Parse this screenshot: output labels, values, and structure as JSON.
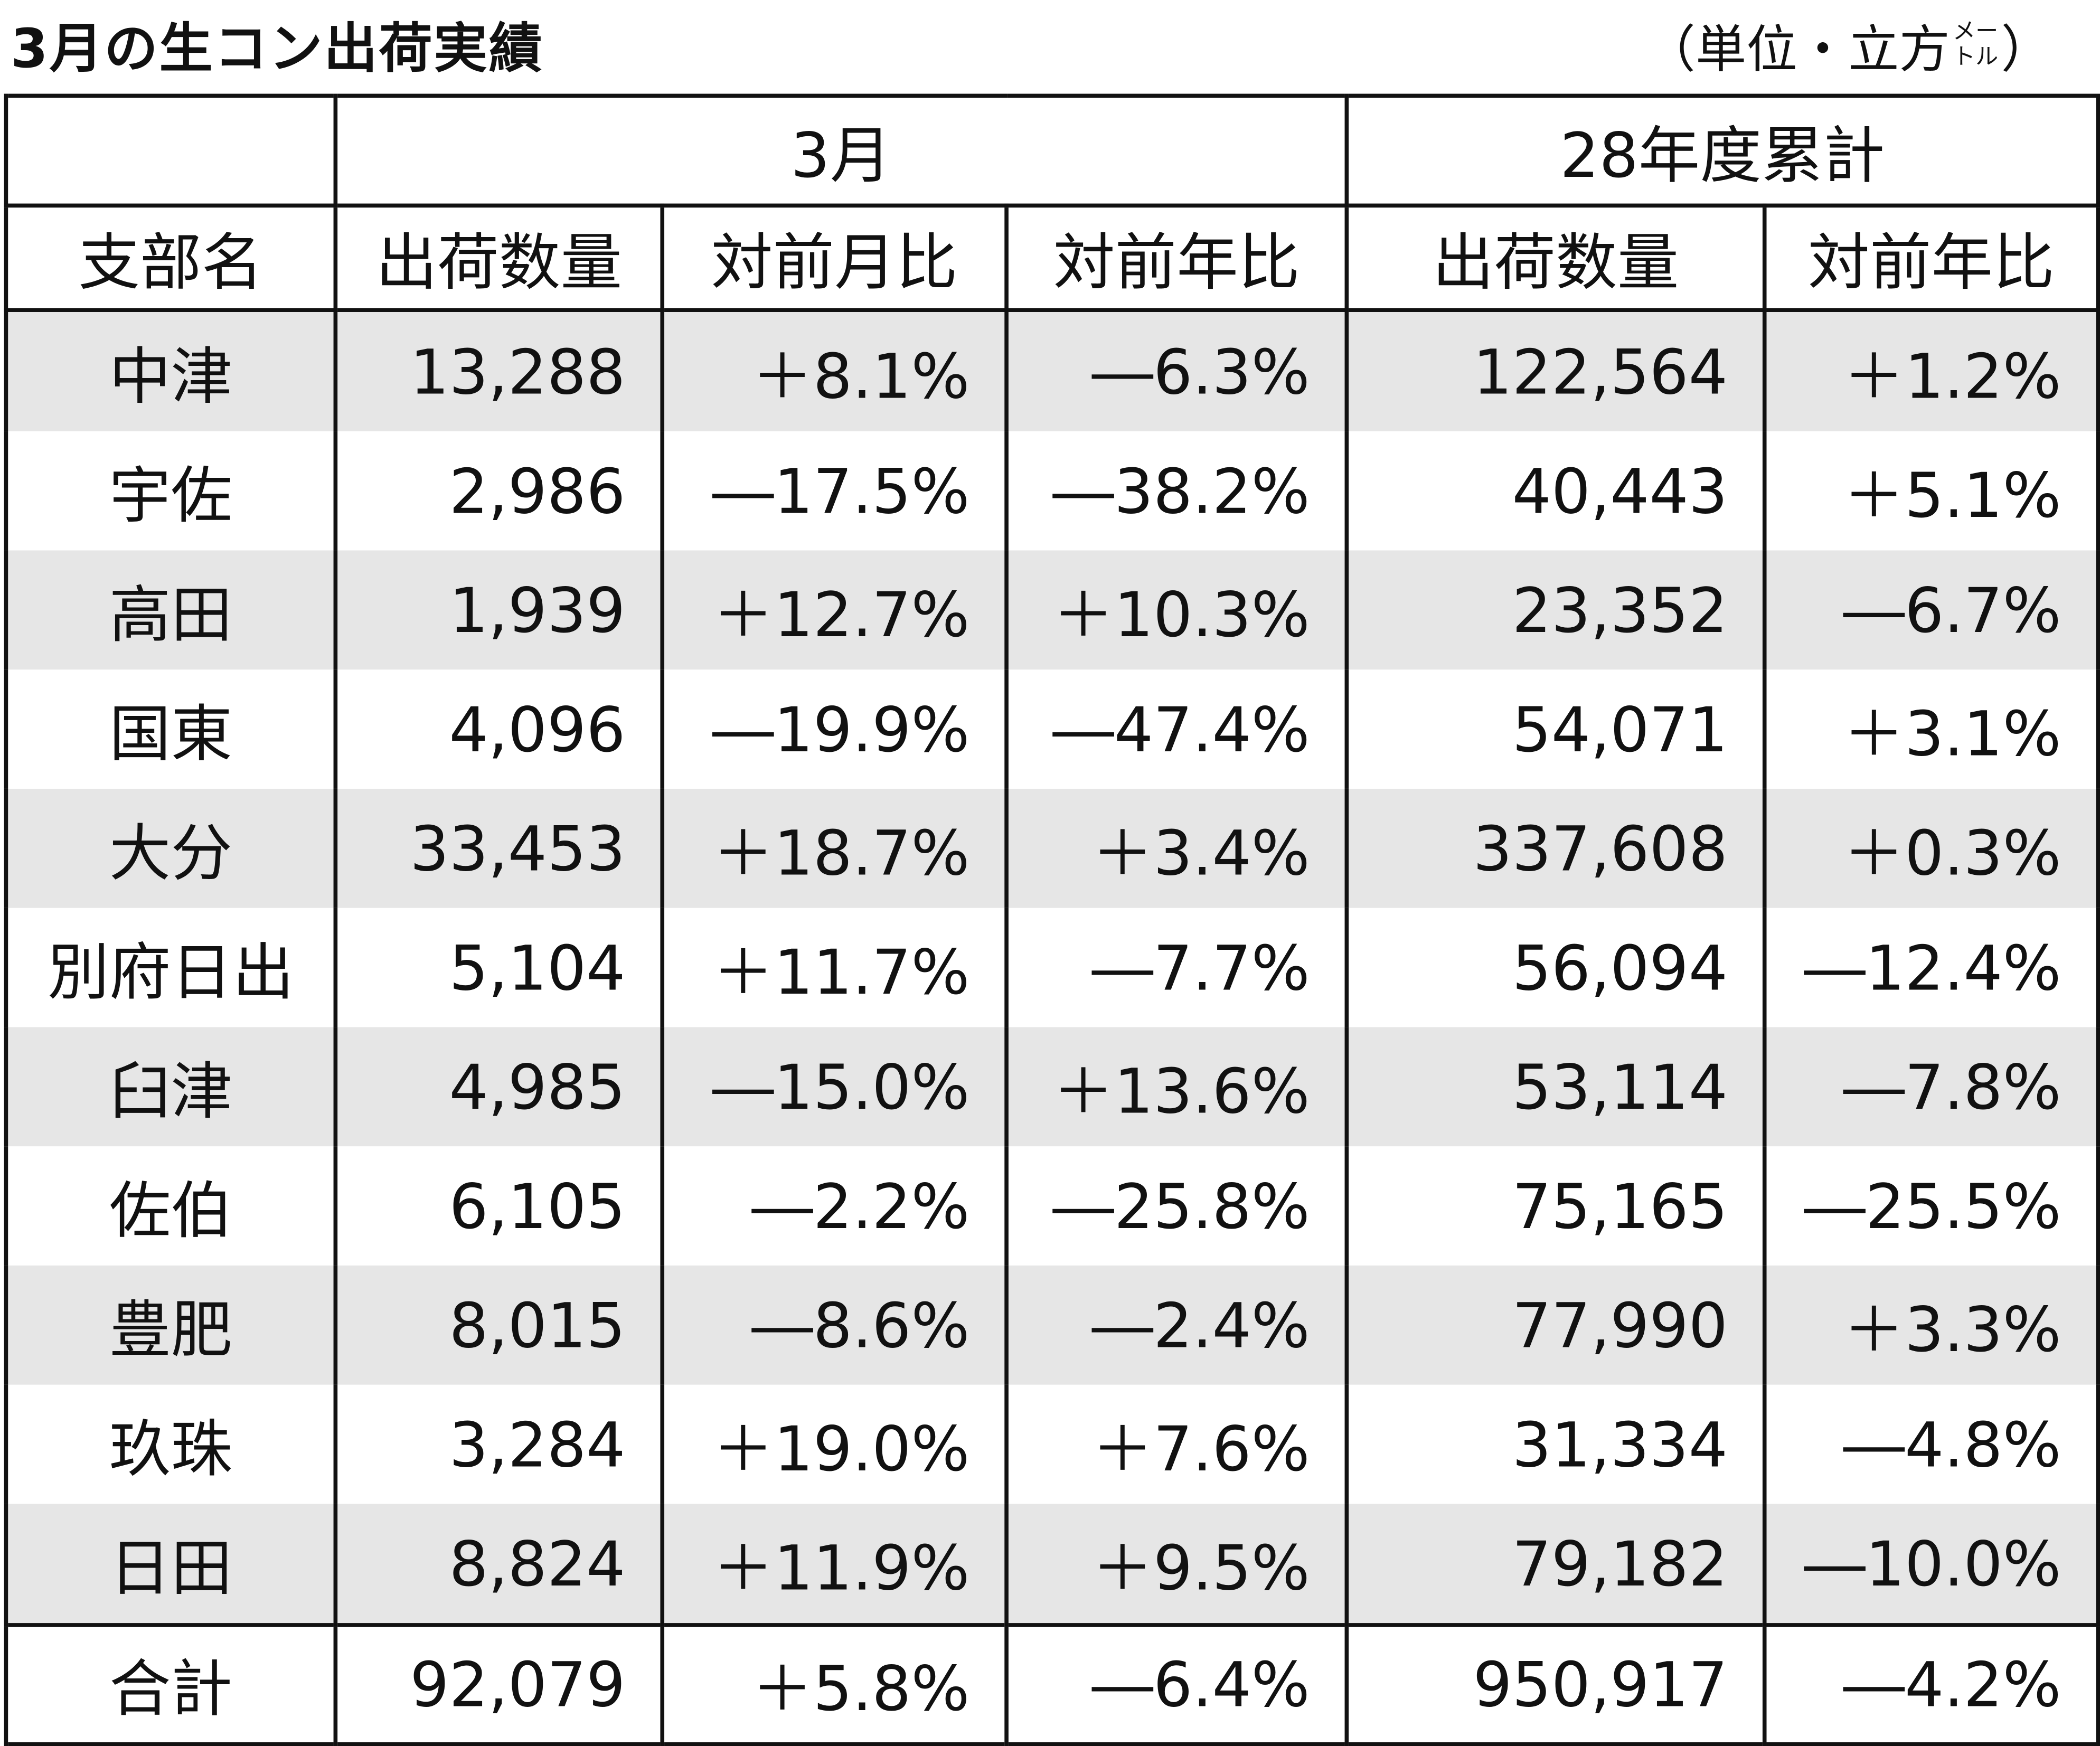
{
  "header": {
    "title": "3月の生コン出荷実績",
    "unit": {
      "open": "（単位・立方",
      "small_top": "メー",
      "small_bottom": "トル",
      "close": "）"
    }
  },
  "table": {
    "groups": [
      "3月",
      "28年度累計"
    ],
    "columns": [
      "支部名",
      "出荷数量",
      "対前月比",
      "対前年比",
      "出荷数量",
      "対前年比"
    ],
    "rows": [
      [
        "中津",
        "13,288",
        "＋8.1%",
        "―6.3%",
        "122,564",
        "＋1.2%"
      ],
      [
        "宇佐",
        "2,986",
        "―17.5%",
        "―38.2%",
        "40,443",
        "＋5.1%"
      ],
      [
        "高田",
        "1,939",
        "＋12.7%",
        "＋10.3%",
        "23,352",
        "―6.7%"
      ],
      [
        "国東",
        "4,096",
        "―19.9%",
        "―47.4%",
        "54,071",
        "＋3.1%"
      ],
      [
        "大分",
        "33,453",
        "＋18.7%",
        "＋3.4%",
        "337,608",
        "＋0.3%"
      ],
      [
        "別府日出",
        "5,104",
        "＋11.7%",
        "―7.7%",
        "56,094",
        "―12.4%"
      ],
      [
        "臼津",
        "4,985",
        "―15.0%",
        "＋13.6%",
        "53,114",
        "―7.8%"
      ],
      [
        "佐伯",
        "6,105",
        "―2.2%",
        "―25.8%",
        "75,165",
        "―25.5%"
      ],
      [
        "豊肥",
        "8,015",
        "―8.6%",
        "―2.4%",
        "77,990",
        "＋3.3%"
      ],
      [
        "玖珠",
        "3,284",
        "＋19.0%",
        "＋7.6%",
        "31,334",
        "―4.8%"
      ],
      [
        "日田",
        "8,824",
        "＋11.9%",
        "＋9.5%",
        "79,182",
        "―10.0%"
      ]
    ],
    "total": [
      "合計",
      "92,079",
      "＋5.8%",
      "―6.4%",
      "950,917",
      "―4.2%"
    ]
  }
}
